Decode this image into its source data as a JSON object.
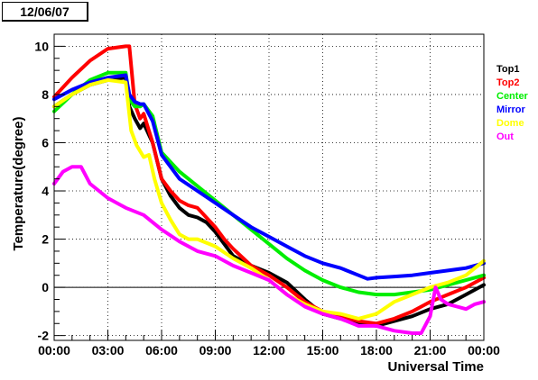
{
  "date_label": "12/06/07",
  "chart_data": {
    "type": "line",
    "title": "",
    "xlabel": "Universal Time",
    "ylabel": "Temperature(degree)",
    "xlim": [
      0,
      24
    ],
    "ylim": [
      -2.2,
      10.5
    ],
    "grid": true,
    "legend_position": "right",
    "x_ticks": [
      0,
      3,
      6,
      9,
      12,
      15,
      18,
      21,
      24
    ],
    "x_tick_labels": [
      "00:00",
      "03:00",
      "06:00",
      "09:00",
      "12:00",
      "15:00",
      "18:00",
      "21:00",
      "00:00"
    ],
    "y_ticks": [
      -2,
      0,
      2,
      4,
      6,
      8,
      10
    ],
    "y_tick_labels": [
      "-2",
      "0",
      "2",
      "4",
      "6",
      "8",
      "10"
    ],
    "zero_line": 0,
    "series": [
      {
        "name": "Top1",
        "color": "#000000",
        "x": [
          0,
          1,
          2,
          3,
          4,
          4.2,
          4.5,
          4.8,
          5.0,
          5.5,
          6.0,
          6.5,
          7.0,
          7.5,
          8.0,
          8.5,
          9.0,
          9.5,
          10,
          11,
          12,
          13,
          14,
          15,
          16,
          17,
          18,
          19,
          20,
          21,
          22,
          23,
          24
        ],
        "y": [
          7.5,
          8.0,
          8.4,
          8.6,
          8.7,
          7.5,
          7.0,
          6.6,
          6.8,
          6.0,
          4.5,
          3.8,
          3.3,
          3.0,
          2.9,
          2.7,
          2.3,
          1.8,
          1.3,
          0.9,
          0.6,
          0.2,
          -0.5,
          -1.1,
          -1.3,
          -1.5,
          -1.6,
          -1.4,
          -1.2,
          -0.9,
          -0.7,
          -0.3,
          0.1
        ]
      },
      {
        "name": "Top2",
        "color": "#ff0000",
        "x": [
          0,
          1,
          2,
          3,
          4,
          4.2,
          4.5,
          4.8,
          5.0,
          5.5,
          6.0,
          6.5,
          7.0,
          7.5,
          8.0,
          8.5,
          9.0,
          9.5,
          10,
          11,
          12,
          13,
          14,
          15,
          16,
          17,
          18,
          19,
          20,
          21,
          22,
          23,
          24
        ],
        "y": [
          7.9,
          8.7,
          9.4,
          9.9,
          10.0,
          10.0,
          7.6,
          7.0,
          7.2,
          6.0,
          4.5,
          4.0,
          3.6,
          3.4,
          3.3,
          2.9,
          2.5,
          2.0,
          1.6,
          0.9,
          0.5,
          0.0,
          -0.6,
          -1.0,
          -1.2,
          -1.4,
          -1.5,
          -1.3,
          -1.0,
          -0.6,
          -0.3,
          0.0,
          0.4
        ]
      },
      {
        "name": "Center",
        "color": "#00ee00",
        "x": [
          0,
          1,
          2,
          3,
          4,
          4.2,
          4.5,
          4.8,
          5.0,
          5.5,
          6.0,
          7.0,
          8.0,
          9.0,
          10,
          11,
          12,
          13,
          14,
          15,
          16,
          17,
          18,
          19,
          20,
          21,
          22,
          23,
          24
        ],
        "y": [
          7.3,
          8.0,
          8.6,
          8.9,
          8.9,
          7.8,
          7.5,
          7.5,
          7.6,
          7.1,
          5.6,
          4.8,
          4.2,
          3.6,
          3.0,
          2.4,
          1.8,
          1.2,
          0.7,
          0.3,
          0.0,
          -0.2,
          -0.3,
          -0.3,
          -0.2,
          -0.1,
          0.1,
          0.3,
          0.5
        ]
      },
      {
        "name": "Mirror",
        "color": "#0000ff",
        "x": [
          0,
          1,
          2,
          3,
          4,
          4.2,
          4.5,
          4.8,
          5.0,
          5.5,
          6.0,
          7.0,
          8.0,
          9.0,
          10,
          11,
          12,
          13,
          14,
          15,
          16,
          17,
          17.5,
          18,
          19,
          20,
          21,
          22,
          23,
          24
        ],
        "y": [
          7.8,
          8.2,
          8.5,
          8.7,
          8.8,
          8.0,
          7.7,
          7.6,
          7.6,
          6.9,
          5.5,
          4.5,
          4.0,
          3.5,
          3.0,
          2.5,
          2.1,
          1.7,
          1.3,
          1.0,
          0.8,
          0.5,
          0.35,
          0.4,
          0.45,
          0.5,
          0.6,
          0.7,
          0.8,
          1.0
        ]
      },
      {
        "name": "Dome",
        "color": "#ffff00",
        "x": [
          0,
          1,
          2,
          3,
          4,
          4.3,
          4.6,
          5.0,
          5.3,
          5.6,
          6.0,
          6.5,
          7.0,
          7.5,
          8.0,
          9.0,
          10,
          11,
          12,
          13,
          14,
          15,
          16,
          17,
          18,
          19,
          20,
          21,
          22,
          23,
          24
        ],
        "y": [
          7.5,
          8.0,
          8.4,
          8.6,
          8.5,
          6.5,
          5.9,
          5.4,
          5.5,
          4.5,
          3.5,
          2.8,
          2.2,
          2.0,
          2.0,
          1.7,
          1.2,
          0.8,
          0.3,
          -0.3,
          -0.7,
          -1.0,
          -1.1,
          -1.3,
          -1.1,
          -0.6,
          -0.3,
          0.0,
          0.2,
          0.5,
          1.1
        ]
      },
      {
        "name": "Out",
        "color": "#ff00ff",
        "x": [
          0,
          0.5,
          1,
          1.5,
          2.0,
          2.5,
          3,
          4,
          5,
          6,
          7,
          8,
          9,
          10,
          11,
          12,
          13,
          14,
          15,
          16,
          17,
          18,
          19,
          20,
          20.5,
          21,
          21.3,
          21.6,
          22,
          22.5,
          23,
          23.5,
          24
        ],
        "y": [
          4.3,
          4.8,
          5.0,
          5.0,
          4.3,
          4.0,
          3.7,
          3.3,
          3.0,
          2.4,
          1.9,
          1.5,
          1.3,
          0.9,
          0.6,
          0.3,
          -0.3,
          -0.8,
          -1.1,
          -1.3,
          -1.6,
          -1.6,
          -1.8,
          -1.9,
          -1.9,
          -1.2,
          0.0,
          -0.5,
          -0.7,
          -0.8,
          -0.9,
          -0.7,
          -0.6
        ]
      }
    ]
  }
}
